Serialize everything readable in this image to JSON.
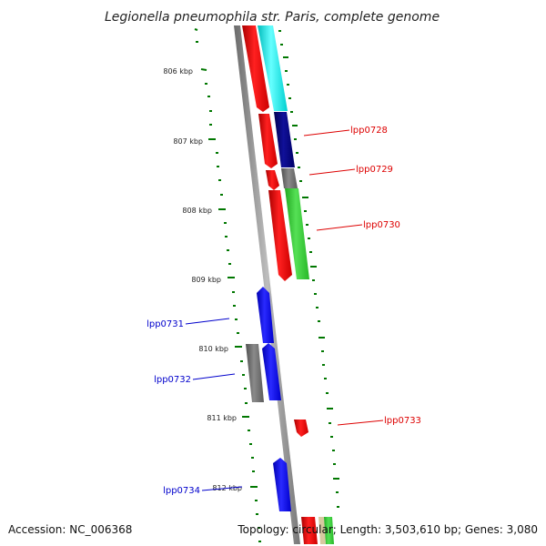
{
  "title": "Legionella pneumophila str. Paris, complete genome",
  "footer": {
    "accession": "Accession: NC_006368",
    "summary": "Topology: circular; Length: 3,503,610 bp; Genes: 3,080"
  },
  "scale_labels": [
    "806 kbp",
    "807 kbp",
    "808 kbp",
    "809 kbp",
    "810 kbp",
    "811 kbp",
    "812 kbp"
  ],
  "gene_labels": {
    "lpp0728": "lpp0728",
    "lpp0729": "lpp0729",
    "lpp0730": "lpp0730",
    "lpp0731": "lpp0731",
    "lpp0732": "lpp0732",
    "lpp0733": "lpp0733",
    "lpp0734": "lpp0734"
  },
  "colors": {
    "forward_label": "#dd0000",
    "reverse_label": "#0000cc",
    "cds_red": "#ff0000",
    "cds_cyan": "#00ffff",
    "cds_navy": "#000080",
    "cds_gray": "#707070",
    "cds_green": "#33cc33",
    "cds_blue": "#0000ff",
    "tick_green": "#007700",
    "backbone": "#8c8c8c"
  }
}
